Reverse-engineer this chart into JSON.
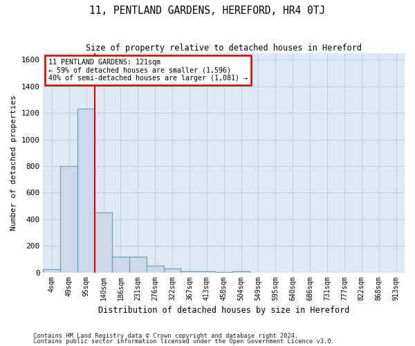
{
  "title": "11, PENTLAND GARDENS, HEREFORD, HR4 0TJ",
  "subtitle": "Size of property relative to detached houses in Hereford",
  "xlabel": "Distribution of detached houses by size in Hereford",
  "ylabel": "Number of detached properties",
  "footnote1": "Contains HM Land Registry data © Crown copyright and database right 2024.",
  "footnote2": "Contains public sector information licensed under the Open Government Licence v3.0.",
  "annotation_line1": "11 PENTLAND GARDENS: 121sqm",
  "annotation_line2": "← 59% of detached houses are smaller (1,596)",
  "annotation_line3": "40% of semi-detached houses are larger (1,081) →",
  "bar_color": "#ccd9e8",
  "bar_edge_color": "#6699bb",
  "grid_color": "#c0cfe0",
  "bg_color": "#dce8f4",
  "annotation_box_color": "#cc0000",
  "property_line_color": "#cc0000",
  "categories": [
    "4sqm",
    "49sqm",
    "95sqm",
    "140sqm",
    "186sqm",
    "231sqm",
    "276sqm",
    "322sqm",
    "367sqm",
    "413sqm",
    "458sqm",
    "504sqm",
    "549sqm",
    "595sqm",
    "640sqm",
    "686sqm",
    "731sqm",
    "777sqm",
    "822sqm",
    "868sqm",
    "913sqm"
  ],
  "values": [
    25,
    800,
    1230,
    450,
    120,
    120,
    50,
    30,
    10,
    10,
    5,
    8,
    0,
    0,
    0,
    0,
    0,
    0,
    0,
    0,
    0
  ],
  "ylim": [
    0,
    1650
  ],
  "yticks": [
    0,
    200,
    400,
    600,
    800,
    1000,
    1200,
    1400,
    1600
  ],
  "fig_width": 6.0,
  "fig_height": 5.0,
  "background_color": "#ffffff"
}
